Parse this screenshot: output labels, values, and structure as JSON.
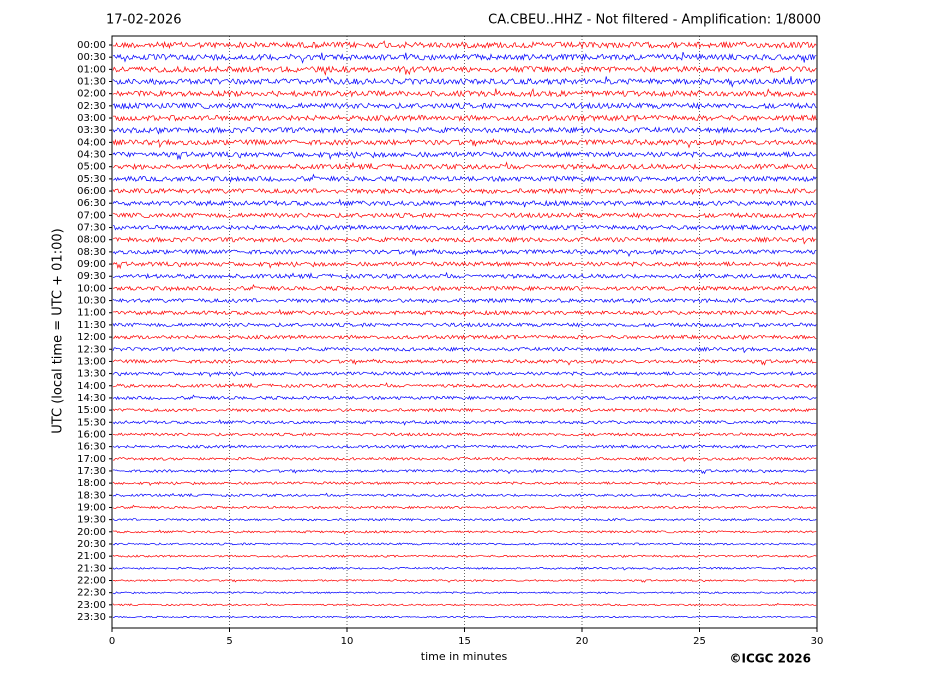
{
  "chart_data": {
    "type": "helicorder",
    "date": "17-02-2026",
    "title": "CA.CBEU..HHZ - Not filtered - Amplification: 1/8000",
    "ylabel": "UTC (local time = UTC + 01:00)",
    "xlabel": "time in minutes",
    "copyright": "©ICGC 2026",
    "categories": [
      "00:00",
      "00:30",
      "01:00",
      "01:30",
      "02:00",
      "02:30",
      "03:00",
      "03:30",
      "04:00",
      "04:30",
      "05:00",
      "05:30",
      "06:00",
      "06:30",
      "07:00",
      "07:30",
      "08:00",
      "08:30",
      "09:00",
      "09:30",
      "10:00",
      "10:30",
      "11:00",
      "11:30",
      "12:00",
      "12:30",
      "13:00",
      "13:30",
      "14:00",
      "14:30",
      "15:00",
      "15:30",
      "16:00",
      "16:30",
      "17:00",
      "17:30",
      "18:00",
      "18:30",
      "19:00",
      "19:30",
      "20:00",
      "20:30",
      "21:00",
      "21:30",
      "22:00",
      "22:30",
      "23:00",
      "23:30"
    ],
    "colors": [
      "#ff0000",
      "#0000ff"
    ],
    "xlim": [
      0,
      30
    ],
    "xticks": [
      0,
      5,
      10,
      15,
      20,
      25,
      30
    ],
    "grid": true
  }
}
